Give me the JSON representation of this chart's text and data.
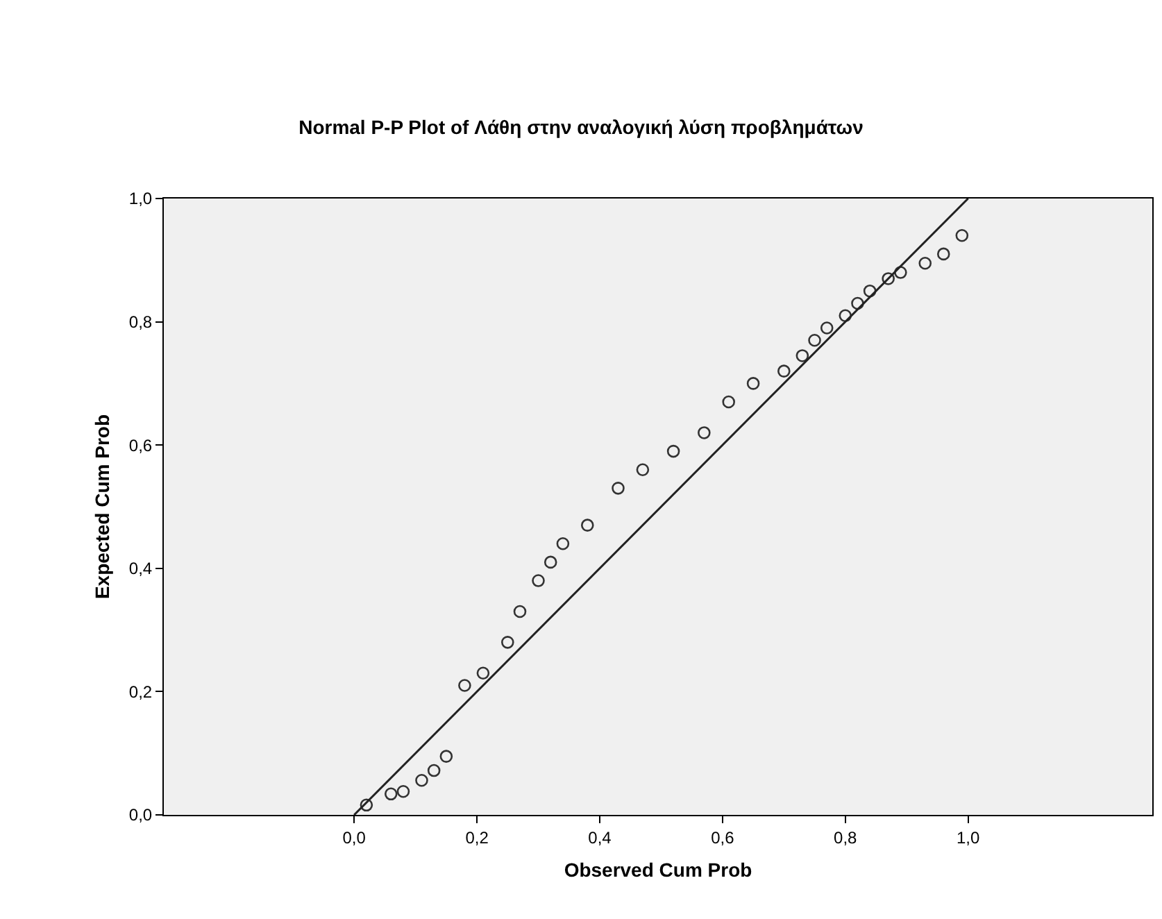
{
  "chart_data": {
    "type": "scatter",
    "title": "Normal P-P Plot of Λάθη στην αναλογική λύση προβλημάτων",
    "xlabel": "Observed Cum Prob",
    "ylabel": "Expected Cum Prob",
    "xlim": [
      -0.31,
      1.3
    ],
    "ylim": [
      0,
      1
    ],
    "xticks": [
      {
        "value": 0,
        "label": "0,0"
      },
      {
        "value": 0.2,
        "label": "0,2"
      },
      {
        "value": 0.4,
        "label": "0,4"
      },
      {
        "value": 0.6,
        "label": "0,6"
      },
      {
        "value": 0.8,
        "label": "0,8"
      },
      {
        "value": 1,
        "label": "1,0"
      }
    ],
    "yticks": [
      {
        "value": 0,
        "label": "0,0"
      },
      {
        "value": 0.2,
        "label": "0,2"
      },
      {
        "value": 0.4,
        "label": "0,4"
      },
      {
        "value": 0.6,
        "label": "0,6"
      },
      {
        "value": 0.8,
        "label": "0,8"
      },
      {
        "value": 1,
        "label": "1,0"
      }
    ],
    "grid": false,
    "legend": false,
    "series": [
      {
        "marker": "circle",
        "color": "#333333",
        "x": [
          0.02,
          0.06,
          0.08,
          0.11,
          0.13,
          0.15,
          0.18,
          0.21,
          0.25,
          0.27,
          0.3,
          0.32,
          0.34,
          0.38,
          0.43,
          0.47,
          0.52,
          0.57,
          0.61,
          0.65,
          0.7,
          0.73,
          0.75,
          0.77,
          0.8,
          0.82,
          0.84,
          0.87,
          0.89,
          0.93,
          0.96,
          0.99
        ],
        "values": [
          0.016,
          0.034,
          0.038,
          0.056,
          0.072,
          0.095,
          0.21,
          0.23,
          0.28,
          0.33,
          0.38,
          0.41,
          0.44,
          0.47,
          0.53,
          0.56,
          0.59,
          0.62,
          0.67,
          0.7,
          0.72,
          0.745,
          0.77,
          0.79,
          0.81,
          0.83,
          0.85,
          0.87,
          0.88,
          0.895,
          0.91,
          0.94
        ]
      },
      {
        "type": "line",
        "marker": "none",
        "color": "#222222",
        "line_style": "solid",
        "x": [
          0,
          1
        ],
        "values": [
          0,
          1
        ]
      }
    ]
  }
}
